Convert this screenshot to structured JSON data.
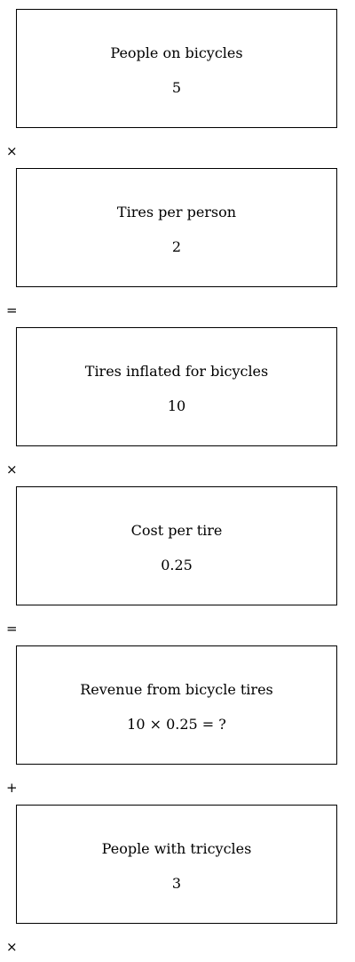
{
  "steps": [
    {
      "label": "People on bicycles",
      "value": "5"
    },
    {
      "label": "Tires per person",
      "value": "2"
    },
    {
      "label": "Tires inflated for bicycles",
      "value": "10"
    },
    {
      "label": "Cost per tire",
      "value": "0.25"
    },
    {
      "label": "Revenue from bicycle tires",
      "value": "10 × 0.25 = ?"
    },
    {
      "label": "People with tricycles",
      "value": "3"
    }
  ],
  "operators": [
    "×",
    "=",
    "×",
    "=",
    "+",
    "×"
  ]
}
